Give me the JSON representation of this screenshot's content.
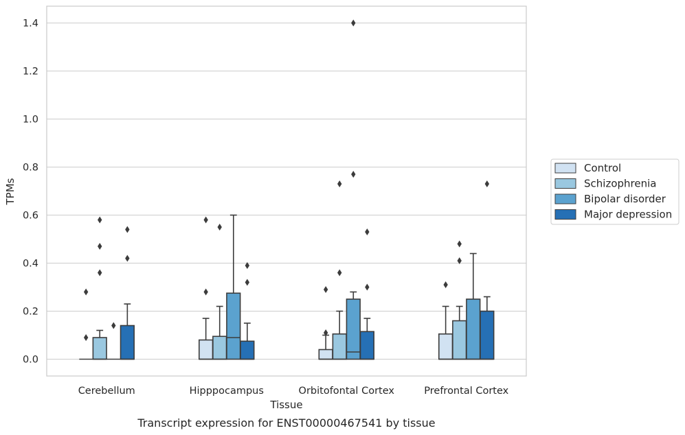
{
  "chart_data": {
    "type": "box",
    "xlabel": "Tissue",
    "ylabel": "TPMs",
    "caption": "Transcript expression for ENST00000467541 by tissue",
    "ylim": [
      -0.07,
      1.47
    ],
    "yticks": [
      0.0,
      0.2,
      0.4,
      0.6,
      0.8,
      1.0,
      1.2,
      1.4
    ],
    "ytick_labels": [
      "0.0",
      "0.2",
      "0.4",
      "0.6",
      "0.8",
      "1.0",
      "1.2",
      "1.4"
    ],
    "grid": "horizontal",
    "legend_position": "right",
    "categories": [
      "Cerebellum",
      "Hipppocampus",
      "Orbitofontal Cortex",
      "Prefrontal Cortex"
    ],
    "series": [
      {
        "name": "Control",
        "color": "#d1e2f2",
        "boxes": [
          {
            "whislo": 0.0,
            "q1": 0.0,
            "med": 0.0,
            "q3": 0.0,
            "whishi": 0.0,
            "fliers": [
              0.09,
              0.28
            ]
          },
          {
            "whislo": 0.0,
            "q1": 0.0,
            "med": 0.0,
            "q3": 0.08,
            "whishi": 0.17,
            "fliers": [
              0.28,
              0.58
            ]
          },
          {
            "whislo": 0.0,
            "q1": 0.0,
            "med": 0.0,
            "q3": 0.04,
            "whishi": 0.1,
            "fliers": [
              0.11,
              0.29
            ]
          },
          {
            "whislo": 0.0,
            "q1": 0.0,
            "med": 0.0,
            "q3": 0.105,
            "whishi": 0.22,
            "fliers": [
              0.31
            ]
          }
        ]
      },
      {
        "name": "Schizophrenia",
        "color": "#9ac8e0",
        "boxes": [
          {
            "whislo": 0.0,
            "q1": 0.0,
            "med": 0.0,
            "q3": 0.09,
            "whishi": 0.12,
            "fliers": [
              0.36,
              0.47,
              0.58
            ]
          },
          {
            "whislo": 0.0,
            "q1": 0.0,
            "med": 0.0,
            "q3": 0.095,
            "whishi": 0.22,
            "fliers": [
              0.55
            ]
          },
          {
            "whislo": 0.0,
            "q1": 0.0,
            "med": 0.0,
            "q3": 0.105,
            "whishi": 0.2,
            "fliers": [
              0.36,
              0.73
            ]
          },
          {
            "whislo": 0.0,
            "q1": 0.0,
            "med": 0.0,
            "q3": 0.16,
            "whishi": 0.22,
            "fliers": [
              0.41,
              0.48
            ]
          }
        ]
      },
      {
        "name": "Bipolar disorder",
        "color": "#5ba2cf",
        "boxes": [
          {
            "whislo": 0.0,
            "q1": 0.0,
            "med": 0.0,
            "q3": 0.0,
            "whishi": 0.0,
            "fliers": [
              0.14
            ]
          },
          {
            "whislo": 0.0,
            "q1": 0.0,
            "med": 0.09,
            "q3": 0.275,
            "whishi": 0.6,
            "fliers": []
          },
          {
            "whislo": 0.0,
            "q1": 0.0,
            "med": 0.03,
            "q3": 0.25,
            "whishi": 0.28,
            "fliers": [
              0.77,
              1.4
            ]
          },
          {
            "whislo": 0.0,
            "q1": 0.0,
            "med": 0.0,
            "q3": 0.25,
            "whishi": 0.44,
            "fliers": []
          }
        ]
      },
      {
        "name": "Major depression",
        "color": "#2670b5",
        "boxes": [
          {
            "whislo": 0.0,
            "q1": 0.0,
            "med": 0.0,
            "q3": 0.14,
            "whishi": 0.23,
            "fliers": [
              0.42,
              0.54
            ]
          },
          {
            "whislo": 0.0,
            "q1": 0.0,
            "med": 0.0,
            "q3": 0.075,
            "whishi": 0.15,
            "fliers": [
              0.32,
              0.39
            ]
          },
          {
            "whislo": 0.0,
            "q1": 0.0,
            "med": 0.0,
            "q3": 0.115,
            "whishi": 0.17,
            "fliers": [
              0.3,
              0.53
            ]
          },
          {
            "whislo": 0.0,
            "q1": 0.0,
            "med": 0.0,
            "q3": 0.2,
            "whishi": 0.26,
            "fliers": [
              0.73
            ]
          }
        ]
      }
    ]
  }
}
